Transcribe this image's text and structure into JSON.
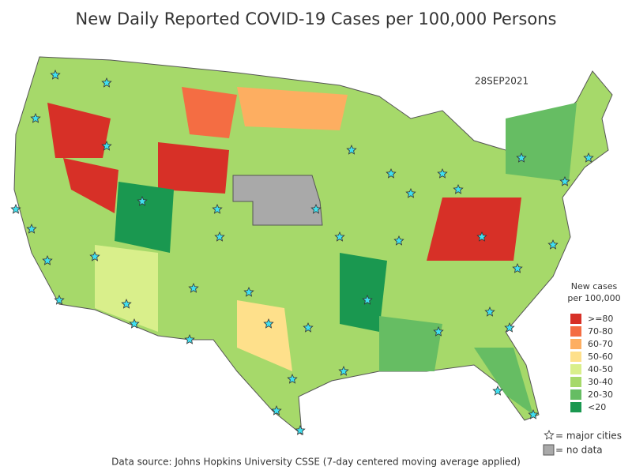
{
  "header": {
    "title": "New Daily Reported COVID-19 Cases per 100,000 Persons",
    "date": "28SEP2021"
  },
  "legend": {
    "title": [
      "New cases",
      "per 100,000"
    ],
    "items": [
      {
        "label": ">=80",
        "color": "#d73027"
      },
      {
        "label": "70-80",
        "color": "#f46d43"
      },
      {
        "label": "60-70",
        "color": "#fdae61"
      },
      {
        "label": "50-60",
        "color": "#fee08b"
      },
      {
        "label": "40-50",
        "color": "#d9ef8b"
      },
      {
        "label": "30-40",
        "color": "#a6d96a"
      },
      {
        "label": "20-30",
        "color": "#66bd63"
      },
      {
        "label": "<20",
        "color": "#1a9850"
      }
    ],
    "cities_label": "= major cities",
    "no_data_label": "= no data",
    "no_data_color": "#a9a9a9"
  },
  "source": "Data source: Johns Hopkins University CSSE (7-day centered moving average applied)"
}
